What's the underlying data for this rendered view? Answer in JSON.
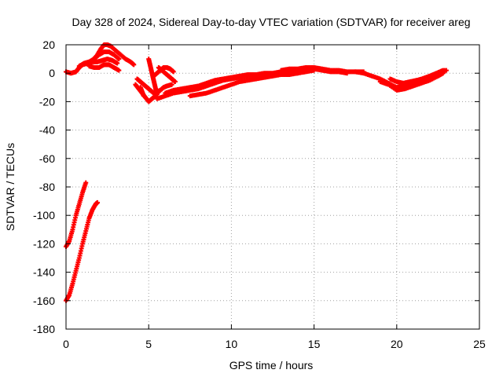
{
  "chart_data": {
    "type": "scatter",
    "title": "Day 328 of 2024, Sidereal Day-to-day VTEC variation (SDTVAR) for receiver areg",
    "xlabel": "GPS time / hours",
    "ylabel": "SDTVAR / TECUs",
    "xlim": [
      0,
      25
    ],
    "ylim": [
      -180,
      20
    ],
    "xticks": [
      0,
      5,
      10,
      15,
      20,
      25
    ],
    "yticks": [
      20,
      0,
      -20,
      -40,
      -60,
      -80,
      -100,
      -120,
      -140,
      -160,
      -180
    ],
    "grid": true,
    "legend": "none",
    "marker": "plus",
    "series": [
      {
        "name": "SDTVAR",
        "color": "#ff0000",
        "tracks": [
          {
            "x": [
              0.0,
              0.3,
              0.6,
              0.8,
              1.0,
              1.3,
              1.6,
              1.9,
              2.1,
              2.3,
              2.5,
              2.7,
              3.0,
              3.3,
              3.6,
              3.9,
              4.1
            ],
            "y": [
              1,
              0,
              1,
              4,
              6,
              7,
              9,
              13,
              17,
              20,
              20,
              19,
              16,
              13,
              10,
              8,
              6
            ]
          },
          {
            "x": [
              0.8,
              1.1,
              1.4,
              1.7,
              2.0,
              2.3,
              2.6,
              2.9,
              3.2
            ],
            "y": [
              5,
              7,
              8,
              10,
              13,
              15,
              15,
              13,
              10
            ]
          },
          {
            "x": [
              1.0,
              1.3,
              1.6,
              1.9,
              2.2,
              2.5,
              2.8,
              3.1
            ],
            "y": [
              6,
              7,
              8,
              8,
              9,
              10,
              9,
              7
            ]
          },
          {
            "x": [
              1.4,
              1.7,
              2.0,
              2.3,
              2.6,
              2.9,
              3.2
            ],
            "y": [
              5,
              4,
              4,
              6,
              6,
              4,
              2
            ]
          },
          {
            "x": [
              4.3,
              4.5,
              4.7,
              4.9,
              5.1,
              5.3,
              5.5,
              5.7,
              5.9,
              6.1,
              6.4
            ],
            "y": [
              -4,
              -6,
              -8,
              -10,
              -12,
              -14,
              -13,
              -12,
              -10,
              -9,
              -8
            ]
          },
          {
            "x": [
              4.2,
              4.4,
              4.6,
              4.8,
              5.0,
              5.2,
              5.4,
              5.6
            ],
            "y": [
              -8,
              -11,
              -14,
              -17,
              -20,
              -18,
              -16,
              -13
            ]
          },
          {
            "x": [
              4.5,
              4.6,
              4.7
            ],
            "y": [
              -10,
              -13,
              -16
            ]
          },
          {
            "x": [
              5.0,
              5.1,
              5.2,
              5.3,
              5.4,
              5.5
            ],
            "y": [
              10,
              5,
              0,
              -5,
              -10,
              -15
            ]
          },
          {
            "x": [
              5.6,
              5.8,
              6.0,
              6.2,
              6.4,
              6.6
            ],
            "y": [
              4,
              2,
              0,
              -2,
              -4,
              -6
            ]
          },
          {
            "x": [
              5.3,
              5.5,
              5.7,
              5.9,
              6.1,
              6.3,
              6.5
            ],
            "y": [
              -2,
              0,
              2,
              4,
              4,
              3,
              1
            ]
          },
          {
            "x": [
              5.5,
              6.0,
              6.5,
              7.0,
              7.5,
              8.0,
              8.5,
              9.0,
              9.5,
              10.0,
              10.5,
              11.0,
              11.5,
              12.0,
              12.5,
              13.0,
              13.5,
              14.0,
              14.5,
              15.0
            ],
            "y": [
              -18,
              -16,
              -14,
              -13,
              -12,
              -11,
              -9,
              -7,
              -5,
              -4,
              -3,
              -2,
              -2,
              -1,
              -1,
              0,
              0,
              0,
              1,
              2
            ]
          },
          {
            "x": [
              6.0,
              6.5,
              7.0,
              7.5,
              8.0,
              8.5,
              9.0,
              9.5,
              10.0,
              10.5,
              11.0,
              11.5,
              12.0,
              12.5,
              13.0,
              13.5,
              14.0,
              14.5,
              15.0,
              15.5,
              16.0,
              16.5,
              17.0
            ],
            "y": [
              -14,
              -12,
              -11,
              -10,
              -9,
              -7,
              -5,
              -4,
              -3,
              -2,
              -1,
              -1,
              0,
              0,
              1,
              1,
              2,
              2,
              3,
              2,
              1,
              1,
              0
            ]
          },
          {
            "x": [
              7.5,
              8.0,
              8.5,
              9.0,
              9.5,
              10.0,
              10.5,
              11.0,
              11.5,
              12.0,
              12.5,
              13.0,
              13.5,
              14.0
            ],
            "y": [
              -16,
              -15,
              -14,
              -12,
              -10,
              -8,
              -6,
              -5,
              -4,
              -3,
              -2,
              -1,
              -1,
              0
            ]
          },
          {
            "x": [
              13.0,
              13.5,
              14.0,
              14.5,
              15.0,
              15.5,
              16.0,
              16.5,
              17.0,
              17.5,
              18.0
            ],
            "y": [
              2,
              3,
              3,
              4,
              4,
              3,
              2,
              2,
              1,
              1,
              1
            ]
          },
          {
            "x": [
              17.5,
              18.0,
              18.5,
              19.0,
              19.5,
              20.0,
              20.5,
              21.0,
              21.5,
              22.0,
              22.5,
              22.9
            ],
            "y": [
              1,
              0,
              -2,
              -4,
              -7,
              -10,
              -8,
              -6,
              -4,
              -2,
              0,
              2
            ]
          },
          {
            "x": [
              19.0,
              19.5,
              20.0,
              20.5,
              21.0,
              21.5,
              22.0,
              22.5,
              22.8
            ],
            "y": [
              -6,
              -8,
              -12,
              -11,
              -9,
              -7,
              -5,
              -2,
              0
            ]
          },
          {
            "x": [
              19.6,
              20.0,
              20.4,
              20.8,
              21.2,
              21.6,
              22.0,
              22.4,
              22.8
            ],
            "y": [
              -4,
              -6,
              -7,
              -6,
              -5,
              -4,
              -2,
              0,
              2
            ]
          },
          {
            "x": [
              20.0,
              20.5,
              21.0,
              21.5,
              22.0,
              22.5,
              23.0
            ],
            "y": [
              -10,
              -9,
              -8,
              -6,
              -4,
              -1,
              2
            ]
          },
          {
            "x": [
              0.0,
              0.2,
              0.4,
              0.6,
              0.8,
              1.0,
              1.2
            ],
            "y": [
              -122,
              -118,
              -110,
              -100,
              -92,
              -84,
              -77
            ]
          },
          {
            "x": [
              0.0,
              0.2,
              0.4,
              0.6,
              0.8,
              1.0,
              1.2,
              1.4,
              1.6,
              1.8,
              1.9
            ],
            "y": [
              -160,
              -156,
              -148,
              -139,
              -130,
              -120,
              -111,
              -102,
              -96,
              -92,
              -91
            ]
          }
        ]
      }
    ]
  }
}
